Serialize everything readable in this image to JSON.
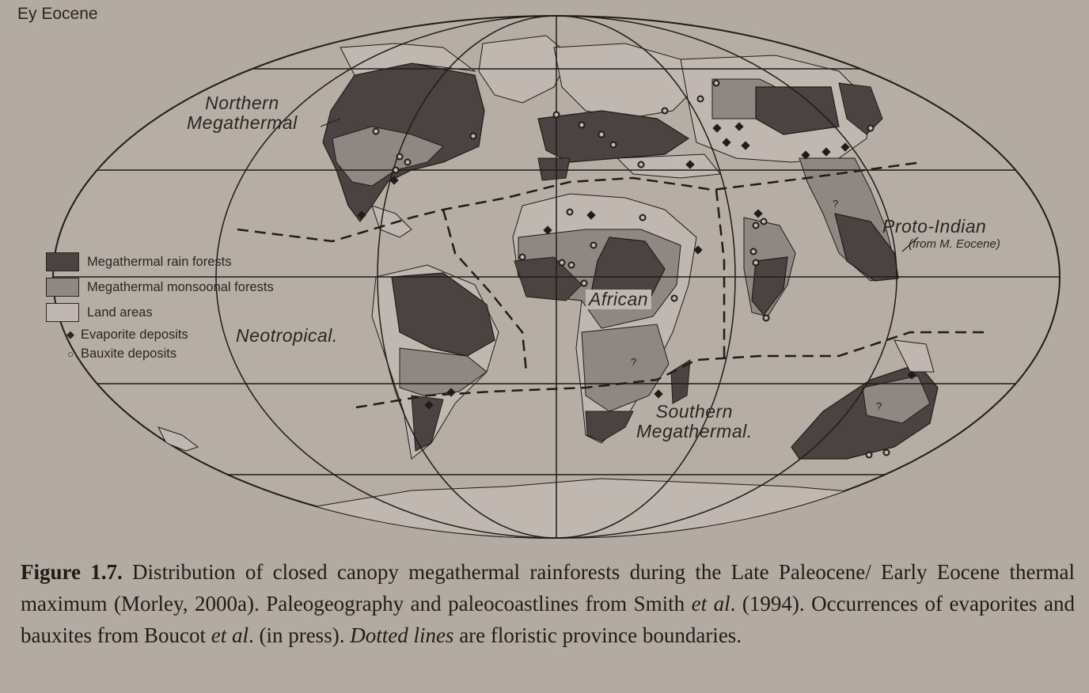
{
  "era_label": "Ey Eocene",
  "regions": {
    "northern_line1": "Northern",
    "northern_line2": "Megathermal",
    "neotropical": "Neotropical.",
    "african": "African",
    "southern_line1": "Southern",
    "southern_line2": "Megathermal.",
    "proto_indian": "Proto-Indian",
    "proto_indian_note": "(from M. Eocene)"
  },
  "legend": {
    "rain_forests": "Megathermal rain forests",
    "monsoonal_forests": "Megathermal monsoonal forests",
    "land_areas": "Land areas",
    "evaporite": "Evaporite deposits",
    "bauxite": "Bauxite deposits",
    "colors": {
      "rain": "#4a4341",
      "monsoon": "#8f8782",
      "land": "#bfb7b0",
      "ocean": "#b3aaa2"
    }
  },
  "caption": {
    "fig_num": "Figure 1.7.",
    "part1": " Distribution of closed canopy megathermal rainforests during the Late Paleocene/ Early Eocene thermal maximum (Morley, 2000a). Paleogeography and paleocoastlines from Smith ",
    "etal1": "et al",
    "part2": ". (1994). Occurrences of evaporites and bauxites from Boucot ",
    "etal2": "et al",
    "part3": ". (in press). ",
    "dotted": "Dotted lines",
    "part4": " are floristic province boundaries."
  }
}
